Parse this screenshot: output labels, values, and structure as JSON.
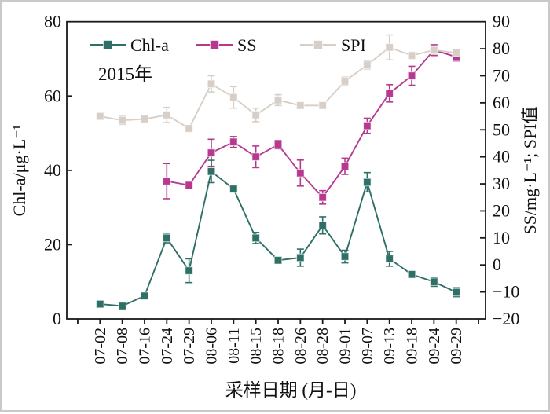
{
  "figure": {
    "annotation": "2015年"
  },
  "chart_data": {
    "type": "line",
    "title": "",
    "annotation": "2015年",
    "xlabel": "采样日期 (月-日)",
    "categories": [
      "07-02",
      "07-08",
      "07-16",
      "07-24",
      "07-29",
      "08-06",
      "08-11",
      "08-15",
      "08-18",
      "08-26",
      "08-28",
      "09-01",
      "09-07",
      "09-13",
      "09-18",
      "09-24",
      "09-29"
    ],
    "y_left": {
      "title": "Chl-a/μg·L⁻¹",
      "min": 0,
      "max": 80,
      "tick_step": 20
    },
    "y_right": {
      "title": "SS/mg·L⁻¹; SPI值",
      "min": -20,
      "max": 90,
      "tick_step": 10
    },
    "grid": false,
    "legend_position": "top-inside",
    "series": [
      {
        "name": "Chl-a",
        "axis": "left",
        "color": "#2e6f66",
        "marker": "square",
        "values": [
          4.0,
          3.5,
          6.2,
          21.8,
          13.0,
          39.7,
          35.0,
          21.8,
          15.8,
          16.5,
          25.2,
          16.8,
          36.8,
          16.2,
          12.0,
          10.0,
          7.2
        ],
        "errors": [
          0.5,
          0.4,
          0.6,
          1.3,
          3.2,
          3.0,
          0.8,
          1.5,
          0.8,
          2.3,
          2.3,
          1.7,
          2.6,
          2.0,
          0.7,
          1.2,
          1.2
        ]
      },
      {
        "name": "SS",
        "axis": "right",
        "color": "#b53a8f",
        "marker": "square",
        "values": [
          null,
          null,
          null,
          31.0,
          29.5,
          41.5,
          45.5,
          40.0,
          44.5,
          34.0,
          25.0,
          36.5,
          51.5,
          63.5,
          70.0,
          79.5,
          77.0
        ],
        "errors": [
          null,
          null,
          null,
          6.5,
          1.2,
          5.0,
          2.0,
          4.0,
          1.5,
          4.8,
          2.5,
          3.0,
          2.8,
          3.2,
          3.5,
          2.0,
          1.5
        ]
      },
      {
        "name": "SPI",
        "axis": "right",
        "color": "#d7cfc7",
        "marker": "square",
        "values": [
          55.0,
          53.5,
          54.0,
          55.5,
          50.5,
          67.0,
          62.0,
          55.5,
          61.0,
          59.0,
          59.0,
          68.0,
          74.0,
          80.5,
          77.5,
          79.5,
          78.5
        ],
        "errors": [
          1.0,
          1.5,
          0.8,
          2.8,
          1.0,
          3.0,
          4.0,
          2.5,
          2.0,
          0.8,
          0.8,
          1.5,
          1.5,
          4.6,
          1.2,
          1.5,
          1.0
        ]
      }
    ]
  }
}
